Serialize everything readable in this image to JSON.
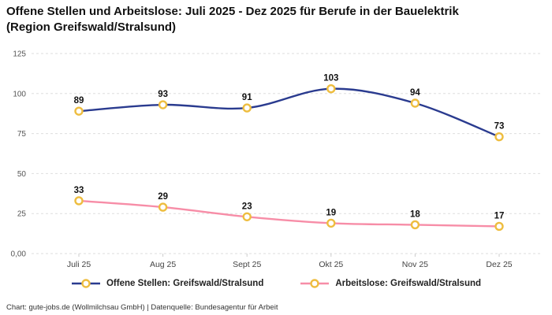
{
  "title": "Offene Stellen und Arbeitslose: Juli 2025 - Dez 2025 für Berufe in der Bauelektrik (Region Greifswald/Stralsund)",
  "footer": "Chart: gute-jobs.de (Wollmilchsau GmbH) | Datenquelle: Bundesagentur für Arbeit",
  "chart_data": {
    "type": "line",
    "title": "Offene Stellen und Arbeitslose: Juli 2025 - Dez 2025 für Berufe in der Bauelektrik (Region Greifswald/Stralsund)",
    "categories": [
      "Juli 25",
      "Aug 25",
      "Sept 25",
      "Okt 25",
      "Nov 25",
      "Dez 25"
    ],
    "series": [
      {
        "name": "Offene Stellen: Greifswald/Stralsund",
        "values": [
          89,
          93,
          91,
          103,
          94,
          73
        ],
        "color": "#2a3b8f"
      },
      {
        "name": "Arbeitslose: Greifswald/Stralsund",
        "values": [
          33,
          29,
          23,
          19,
          18,
          17
        ],
        "color": "#f78da7"
      }
    ],
    "marker_color": "#eebd3f",
    "ylim": [
      0,
      125
    ],
    "y_ticks": [
      {
        "value": 0,
        "label": "0,00"
      },
      {
        "value": 25,
        "label": "25"
      },
      {
        "value": 50,
        "label": "50"
      },
      {
        "value": 75,
        "label": "75"
      },
      {
        "value": 100,
        "label": "100"
      },
      {
        "value": 125,
        "label": "125"
      }
    ],
    "grid": "dashed-horizontal",
    "legend_position": "bottom"
  }
}
